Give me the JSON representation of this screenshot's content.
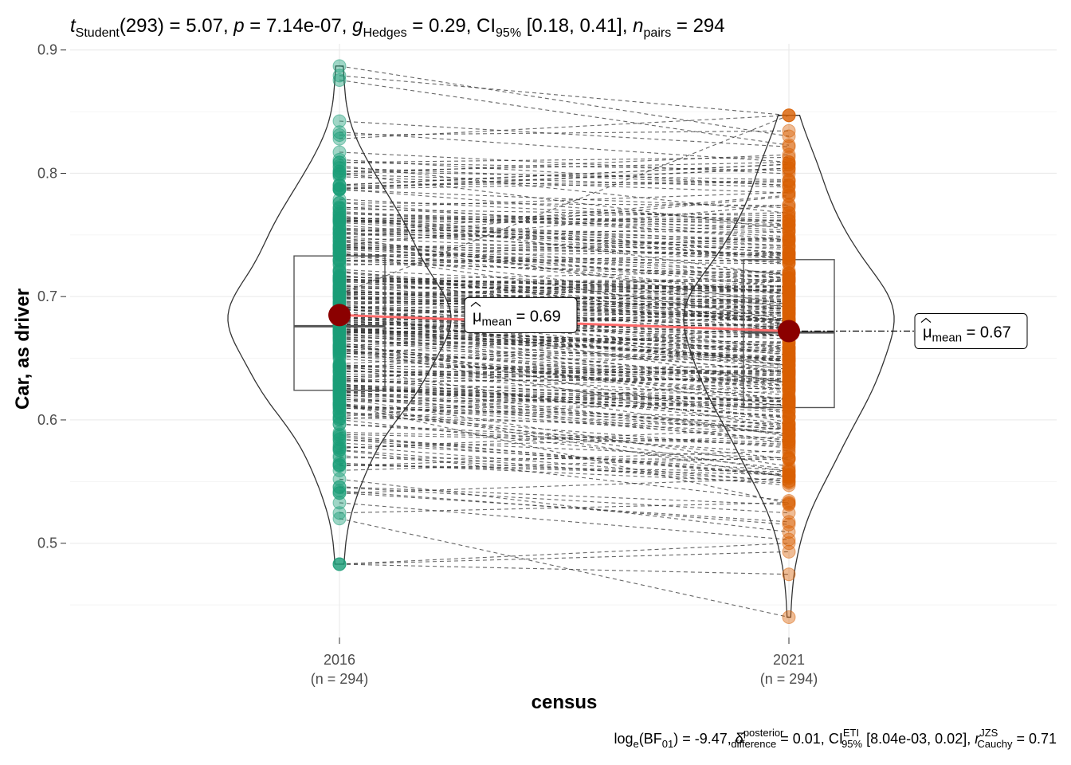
{
  "chart_data": {
    "type": "paired-violin-box-scatter",
    "subtitle": {
      "t": "t",
      "t_sub": "Student",
      "df": "(293)",
      "t_val": "5.07",
      "p": "p",
      "p_val": "7.14e-07",
      "g": "g",
      "g_sub": "Hedges",
      "g_val": "0.29",
      "ci": "CI",
      "ci_sub": "95%",
      "ci_val": "[0.18, 0.41]",
      "n": "n",
      "n_sub": "pairs",
      "n_val": "294"
    },
    "caption": {
      "log": "log",
      "log_sub": "e",
      "bf": "(BF",
      "bf_sub": "01",
      "bf_val": ") = -9.47,",
      "delta_sup": "posterior",
      "delta_sub": "difference",
      "delta_val": "= 0.01,",
      "ci": "CI",
      "ci_sup": "ETI",
      "ci_sub": "95%",
      "ci_val": "[8.04e-03, 0.02],",
      "r": "r",
      "r_sup": "JZS",
      "r_sub": "Cauchy",
      "r_val": "= 0.71"
    },
    "xlabel": "census",
    "ylabel": "Car, as driver",
    "ylim": [
      0.43,
      0.905
    ],
    "y_ticks": [
      "0.5",
      "0.6",
      "0.7",
      "0.8",
      "0.9"
    ],
    "categories": [
      {
        "name": "2016",
        "n_label": "(n = 294)",
        "color": "#1b9e77",
        "mean": 0.685,
        "mean_label": "0.69",
        "box": {
          "q1": 0.624,
          "median": 0.676,
          "q3": 0.733,
          "min": 0.483,
          "max": 0.887
        }
      },
      {
        "name": "2021",
        "n_label": "(n = 294)",
        "color": "#d95f02",
        "mean": 0.672,
        "mean_label": "0.67",
        "box": {
          "q1": 0.61,
          "median": 0.671,
          "q3": 0.73,
          "min": 0.44,
          "max": 0.847
        }
      }
    ],
    "mean_label_prefix": "μ",
    "mean_label_sub": "mean",
    "mean_color": "#8b0000",
    "mean_line_color": "#ff6b6b",
    "grid": true
  }
}
